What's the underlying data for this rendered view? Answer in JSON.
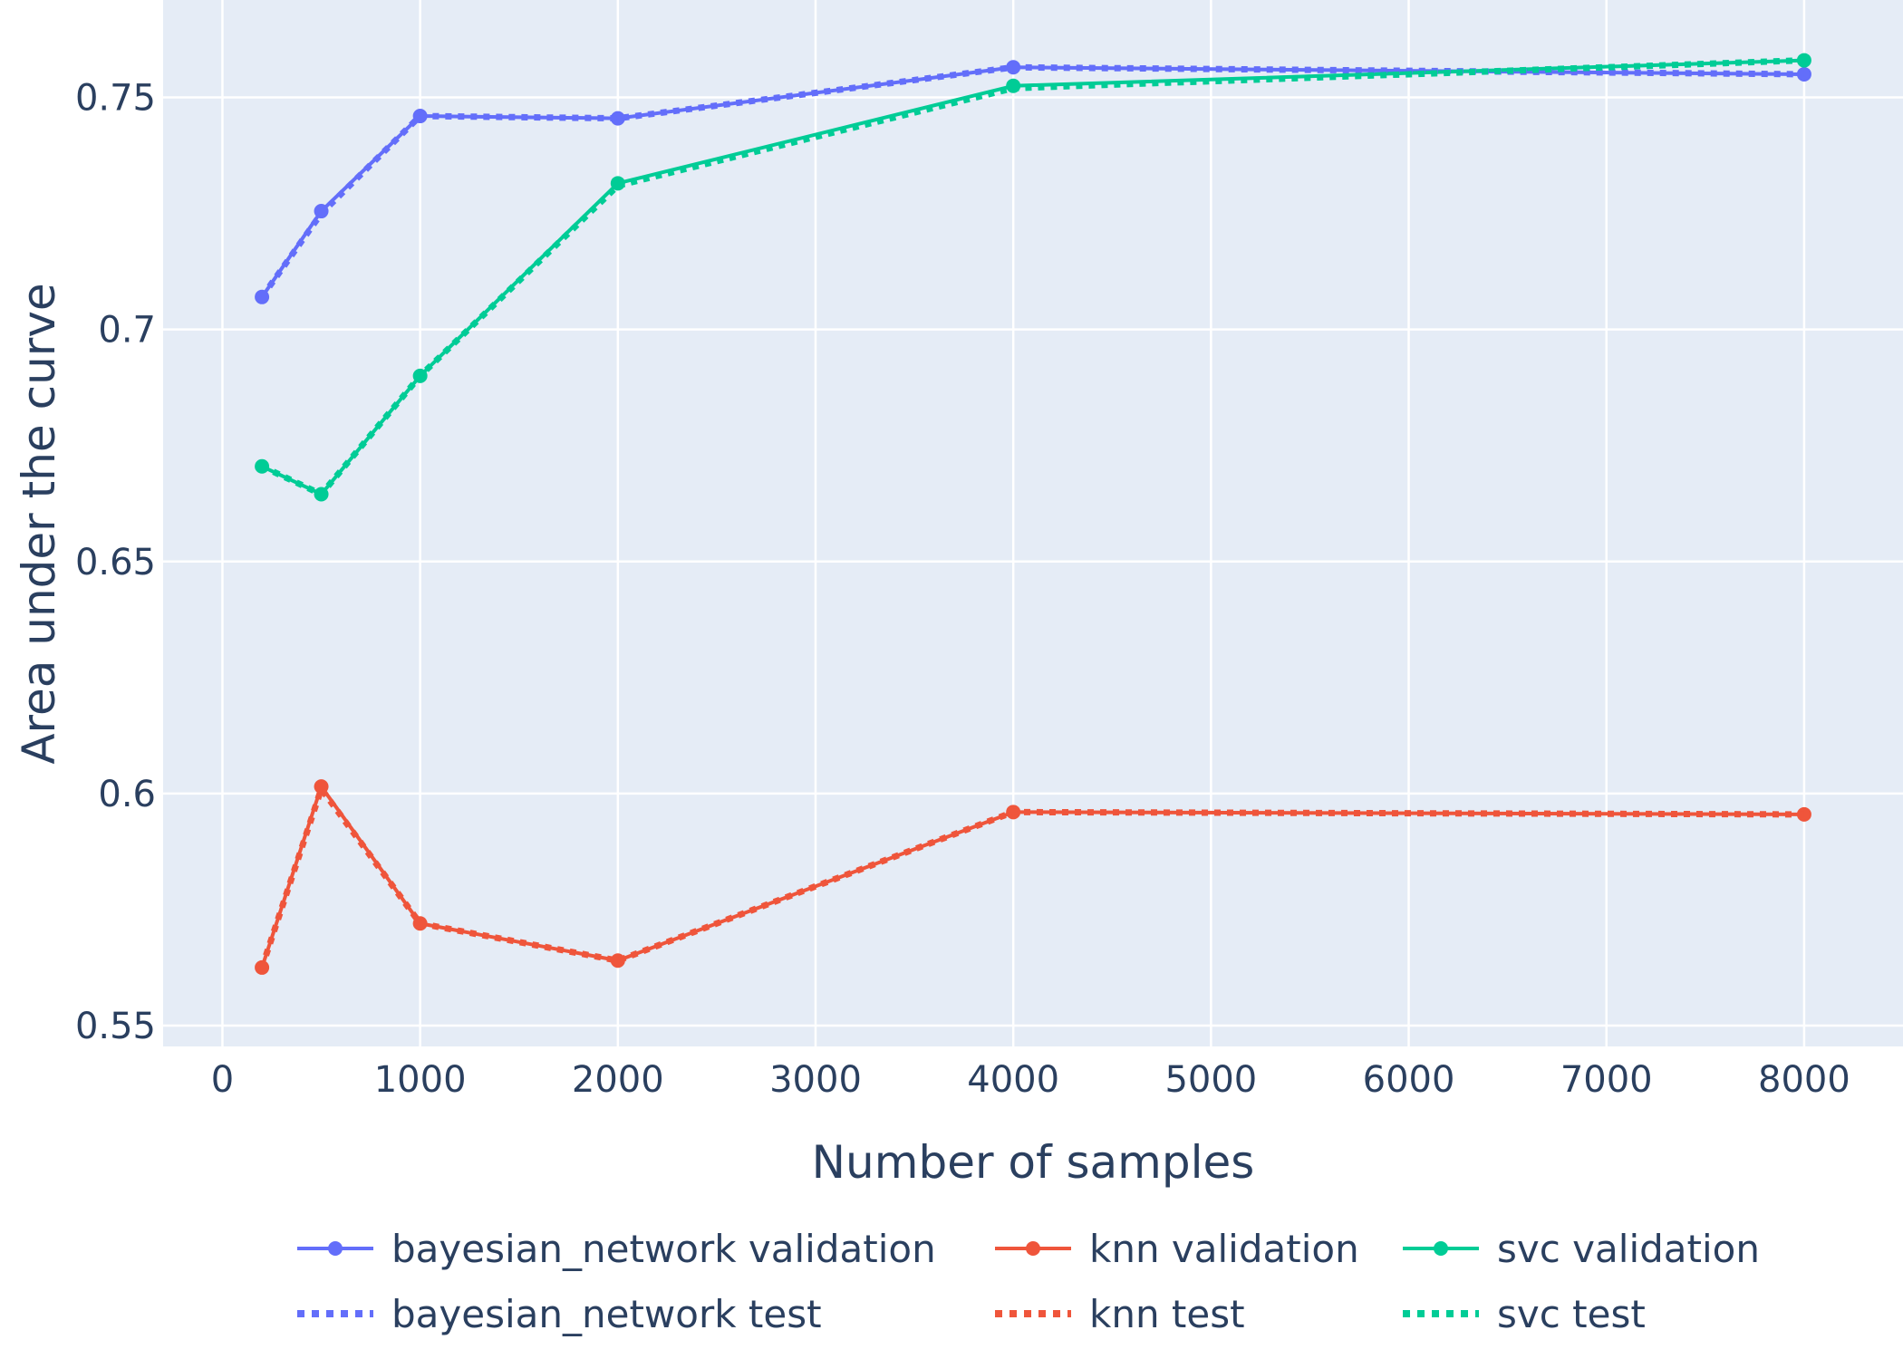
{
  "chart_data": {
    "type": "line",
    "title": "",
    "xlabel": "Number of samples",
    "ylabel": "Area under the curve",
    "xlim": [
      -300,
      8500
    ],
    "ylim": [
      0.5455,
      0.771
    ],
    "x_ticks": [
      0,
      1000,
      2000,
      3000,
      4000,
      5000,
      6000,
      7000,
      8000
    ],
    "x_tick_labels": [
      "0",
      "1000",
      "2000",
      "3000",
      "4000",
      "5000",
      "6000",
      "7000",
      "8000"
    ],
    "y_ticks": [
      0.55,
      0.6,
      0.65,
      0.7,
      0.75
    ],
    "y_tick_labels": [
      "0.55",
      "0.6",
      "0.65",
      "0.7",
      "0.75"
    ],
    "grid": true,
    "legend_position": "bottom",
    "x": [
      200,
      500,
      1000,
      2000,
      4000,
      8000
    ],
    "series": [
      {
        "name": "bayesian_network validation",
        "color": "#636efa",
        "style": "solid-markers",
        "values": [
          0.707,
          0.7255,
          0.746,
          0.7455,
          0.7565,
          0.755
        ]
      },
      {
        "name": "knn validation",
        "color": "#ef553b",
        "style": "solid-markers",
        "values": [
          0.5625,
          0.6015,
          0.572,
          0.564,
          0.596,
          0.5955
        ]
      },
      {
        "name": "svc validation",
        "color": "#00cc96",
        "style": "solid-markers",
        "values": [
          0.6705,
          0.6645,
          0.69,
          0.7315,
          0.7525,
          0.758
        ]
      },
      {
        "name": "bayesian_network test",
        "color": "#636efa",
        "style": "dotted",
        "values": [
          0.707,
          0.725,
          0.746,
          0.7455,
          0.7565,
          0.755
        ]
      },
      {
        "name": "knn test",
        "color": "#ef553b",
        "style": "dotted",
        "values": [
          0.5625,
          0.601,
          0.572,
          0.564,
          0.596,
          0.5955
        ]
      },
      {
        "name": "svc test",
        "color": "#00cc96",
        "style": "dotted",
        "values": [
          0.6705,
          0.6645,
          0.69,
          0.731,
          0.752,
          0.758
        ]
      }
    ]
  }
}
